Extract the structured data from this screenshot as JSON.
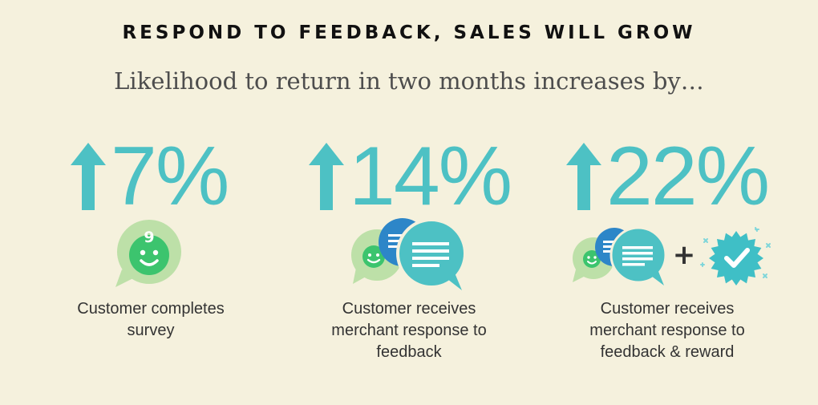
{
  "title": "RESPOND TO FEEDBACK, SALES WILL GROW",
  "subtitle": "Likelihood to return in two months increases by…",
  "colors": {
    "background": "#f5f1dd",
    "accent_teal": "#4dc1c4",
    "green_face": "#3cc46e",
    "light_green_bubble": "#bde0a8",
    "blue_bubble": "#2d86c8",
    "badge_teal": "#3fbfc6"
  },
  "items": [
    {
      "value": "7%",
      "trend": "up",
      "icon": "smiling-face-survey-bubble-icon",
      "badge_number": "9",
      "caption_lines": [
        "Customer completes",
        "survey"
      ]
    },
    {
      "value": "14%",
      "trend": "up",
      "icon": "face-and-merchant-response-bubbles-icon",
      "caption_lines": [
        "Customer receives",
        "merchant response to",
        "feedback"
      ]
    },
    {
      "value": "22%",
      "trend": "up",
      "icon": "response-bubbles-plus-reward-badge-icon",
      "plus_sign": "+",
      "caption_lines": [
        "Customer receives",
        "merchant response to",
        "feedback & reward"
      ]
    }
  ]
}
